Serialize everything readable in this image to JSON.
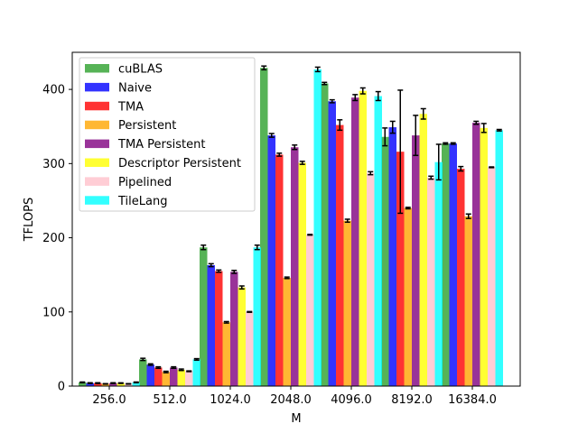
{
  "chart_data": {
    "type": "bar",
    "title": "",
    "xlabel": "M",
    "ylabel": "TFLOPS",
    "ylim": [
      0,
      450
    ],
    "yticks": [
      0,
      100,
      200,
      300,
      400
    ],
    "grid": false,
    "legend_position": "top-left",
    "categories": [
      "256.0",
      "512.0",
      "1024.0",
      "2048.0",
      "4096.0",
      "8192.0",
      "16384.0"
    ],
    "series": [
      {
        "name": "cuBLAS",
        "color": "#2ca02c",
        "values": [
          5,
          36,
          187,
          429,
          408,
          336,
          327
        ],
        "errors": [
          0.5,
          1.5,
          3,
          2.5,
          1.5,
          12,
          1
        ]
      },
      {
        "name": "Naive",
        "color": "#0000ff",
        "values": [
          4,
          29,
          163,
          338,
          384,
          349,
          327
        ],
        "errors": [
          0.5,
          1,
          2,
          2.5,
          2,
          8,
          1
        ]
      },
      {
        "name": "TMA",
        "color": "#ff0000",
        "values": [
          4,
          25,
          155,
          312,
          352,
          316,
          293
        ],
        "errors": [
          0.5,
          1,
          1.5,
          2,
          7,
          83,
          3
        ]
      },
      {
        "name": "Persistent",
        "color": "#ffa500",
        "values": [
          3,
          19,
          86,
          146,
          223,
          240,
          229
        ],
        "errors": [
          0.3,
          1,
          1,
          1,
          2,
          1,
          3
        ]
      },
      {
        "name": "TMA Persistent",
        "color": "#800080",
        "values": [
          4,
          25,
          154,
          322,
          389,
          338,
          355
        ],
        "errors": [
          0.5,
          1,
          2,
          3,
          4,
          27,
          2
        ]
      },
      {
        "name": "Descriptor Persistent",
        "color": "#ffff00",
        "values": [
          4,
          22,
          133,
          301,
          398,
          367,
          348
        ],
        "errors": [
          0.4,
          1,
          2,
          2,
          4,
          7,
          6
        ]
      },
      {
        "name": "Pipelined",
        "color": "#ffc0cb",
        "values": [
          3,
          20,
          100,
          204,
          287,
          281,
          295
        ],
        "errors": [
          0.3,
          0.5,
          0.5,
          0.5,
          2,
          2,
          0.5
        ]
      },
      {
        "name": "TileLang",
        "color": "#00ffff",
        "values": [
          5,
          36,
          187,
          427,
          391,
          302,
          345
        ],
        "errors": [
          0.5,
          1,
          3,
          3,
          6,
          24,
          1
        ]
      }
    ]
  }
}
